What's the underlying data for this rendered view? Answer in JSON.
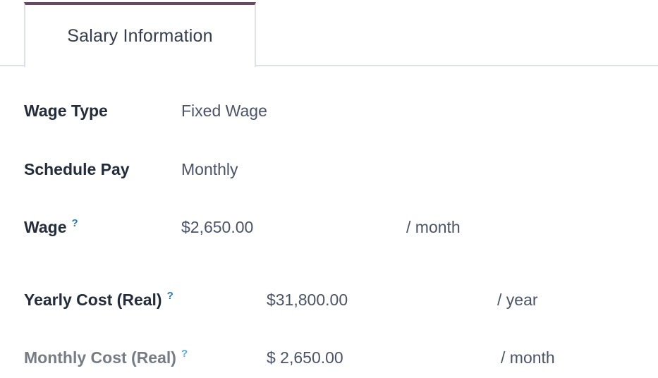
{
  "tab": {
    "label": "Salary Information"
  },
  "help_marker": "?",
  "theme": {
    "accent": "#6b4862",
    "tab_border": "#dee2e6",
    "label_color": "#232c3a",
    "muted_label_color": "#757c84",
    "value_color": "#4a5468",
    "help_color": "#2778be",
    "help_muted_color": "#5cabdd"
  },
  "rows": [
    {
      "label": "Wage Type",
      "value": "Fixed Wage",
      "unit": ""
    },
    {
      "label": "Schedule Pay",
      "value": "Monthly",
      "unit": ""
    },
    {
      "label": "Wage",
      "value": "$2,650.00",
      "unit": "/ month"
    },
    {
      "label": "Yearly Cost (Real)",
      "value": "$31,800.00",
      "unit": "/ year"
    },
    {
      "label": "Monthly Cost (Real)",
      "value": "$ 2,650.00",
      "unit": "/ month"
    }
  ]
}
